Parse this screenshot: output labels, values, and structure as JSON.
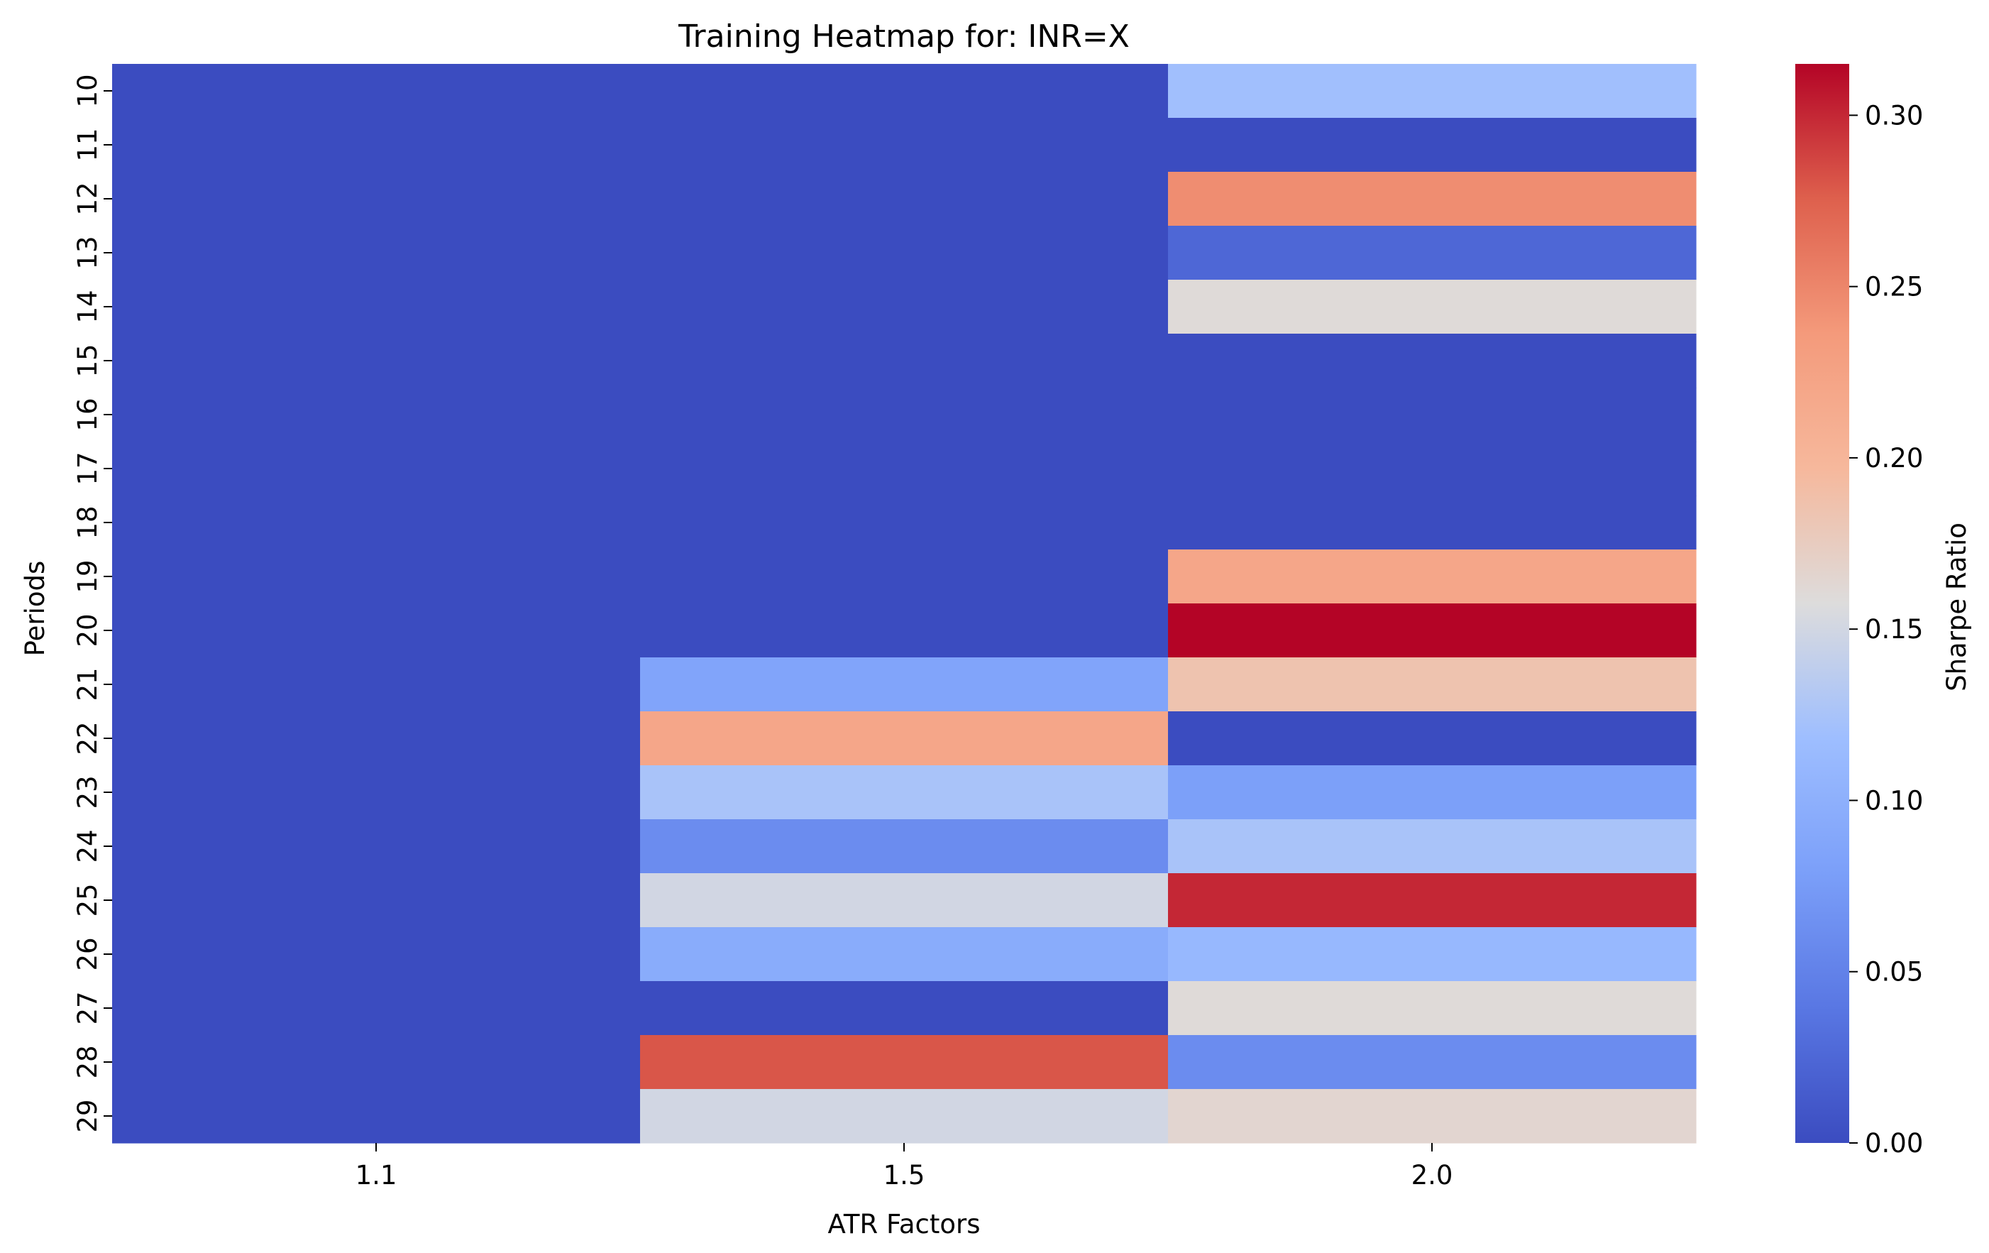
{
  "chart_data": {
    "type": "heatmap",
    "title": "Training Heatmap for: INR=X",
    "xlabel": "ATR Factors",
    "ylabel": "Periods",
    "x_categories": [
      "1.1",
      "1.5",
      "2.0"
    ],
    "y_categories": [
      "10",
      "11",
      "12",
      "13",
      "14",
      "15",
      "16",
      "17",
      "18",
      "19",
      "20",
      "21",
      "22",
      "23",
      "24",
      "25",
      "26",
      "27",
      "28",
      "29"
    ],
    "values": [
      [
        0.0,
        0.0,
        0.12
      ],
      [
        0.0,
        0.0,
        0.0
      ],
      [
        0.0,
        0.0,
        0.245
      ],
      [
        0.0,
        0.0,
        0.025
      ],
      [
        0.0,
        0.0,
        0.16
      ],
      [
        0.0,
        0.0,
        0.0
      ],
      [
        0.0,
        0.0,
        0.0
      ],
      [
        0.0,
        0.0,
        0.0
      ],
      [
        0.0,
        0.0,
        0.0
      ],
      [
        0.0,
        0.0,
        0.22
      ],
      [
        0.0,
        0.0,
        0.315
      ],
      [
        0.0,
        0.085,
        0.185
      ],
      [
        0.0,
        0.22,
        0.0
      ],
      [
        0.0,
        0.125,
        0.08
      ],
      [
        0.0,
        0.06,
        0.125
      ],
      [
        0.0,
        0.15,
        0.3
      ],
      [
        0.0,
        0.095,
        0.11
      ],
      [
        0.0,
        0.0,
        0.16
      ],
      [
        0.0,
        0.28,
        0.06
      ],
      [
        0.0,
        0.15,
        0.165
      ]
    ],
    "colormap": "coolwarm",
    "vmin": 0.0,
    "vmax": 0.315,
    "colorbar": {
      "label": "Sharpe Ratio",
      "ticks": [
        "0.00",
        "0.05",
        "0.10",
        "0.15",
        "0.20",
        "0.25",
        "0.30"
      ]
    },
    "grid": false,
    "legend": "colorbar-right"
  }
}
